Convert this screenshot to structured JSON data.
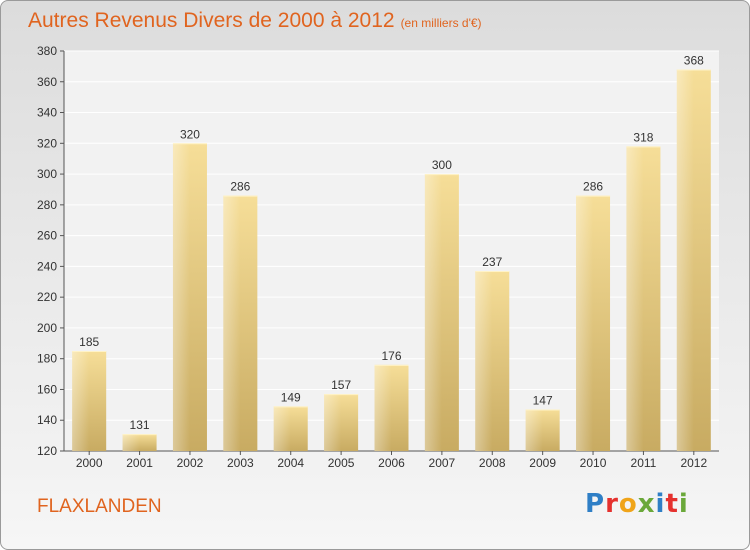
{
  "chart_data": {
    "type": "bar",
    "title": "Autres Revenus Divers de 2000 à 2012",
    "subtitle": "(en milliers d'€)",
    "categories": [
      "2000",
      "2001",
      "2002",
      "2003",
      "2004",
      "2005",
      "2006",
      "2007",
      "2008",
      "2009",
      "2010",
      "2011",
      "2012"
    ],
    "values": [
      185,
      131,
      320,
      286,
      149,
      157,
      176,
      300,
      237,
      147,
      286,
      318,
      368
    ],
    "ylim": [
      120,
      380
    ],
    "yticks": [
      120,
      140,
      160,
      180,
      200,
      220,
      240,
      260,
      280,
      300,
      320,
      340,
      360,
      380
    ],
    "grid": true,
    "bar_color": "#e8cc80",
    "xlabel": "",
    "ylabel": ""
  },
  "place_name": "FLAXLANDEN",
  "brand": {
    "letters": [
      "P",
      "r",
      "o",
      "x",
      "i",
      "t",
      "i"
    ],
    "colors": [
      "#2f7fc6",
      "#e5312e",
      "#f0a419",
      "#6aa83a",
      "#2f7fc6",
      "#e5312e",
      "#6aa83a"
    ]
  }
}
